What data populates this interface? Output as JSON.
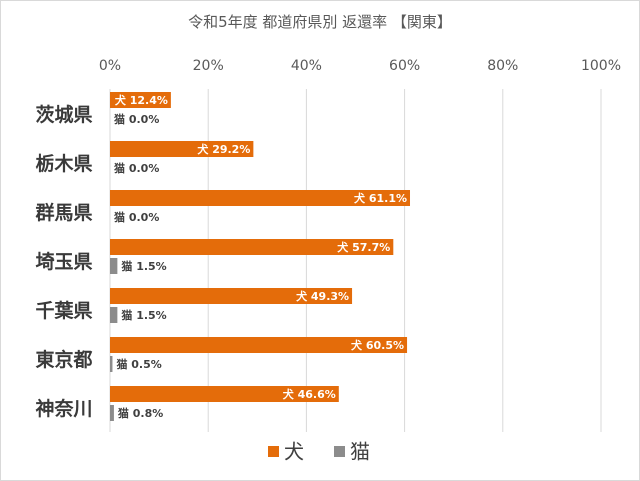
{
  "chart_data": {
    "type": "bar",
    "orientation": "horizontal",
    "title": "令和5年度 都道府県別 返還率 【関東】",
    "categories": [
      "茨城県",
      "栃木県",
      "群馬県",
      "埼玉県",
      "千葉県",
      "東京都",
      "神奈川"
    ],
    "series": [
      {
        "name": "犬",
        "color": "#e46c0a",
        "values": [
          12.4,
          29.2,
          61.1,
          57.7,
          49.3,
          60.5,
          46.6
        ],
        "labels": [
          "犬 12.4%",
          "犬 29.2%",
          "犬 61.1%",
          "犬 57.7%",
          "犬 49.3%",
          "犬 60.5%",
          "犬 46.6%"
        ]
      },
      {
        "name": "猫",
        "color": "#8c8c8c",
        "values": [
          0.0,
          0.0,
          0.0,
          1.5,
          1.5,
          0.5,
          0.8
        ],
        "labels": [
          "猫 0.0%",
          "猫 0.0%",
          "猫 0.0%",
          "猫 1.5%",
          "猫 1.5%",
          "猫 0.5%",
          "猫 0.8%"
        ]
      }
    ],
    "xlim": [
      0,
      100
    ],
    "xticks": [
      "0%",
      "20%",
      "40%",
      "60%",
      "80%",
      "100%"
    ],
    "axis_position": "top",
    "grid": true,
    "legend": "bottom"
  }
}
